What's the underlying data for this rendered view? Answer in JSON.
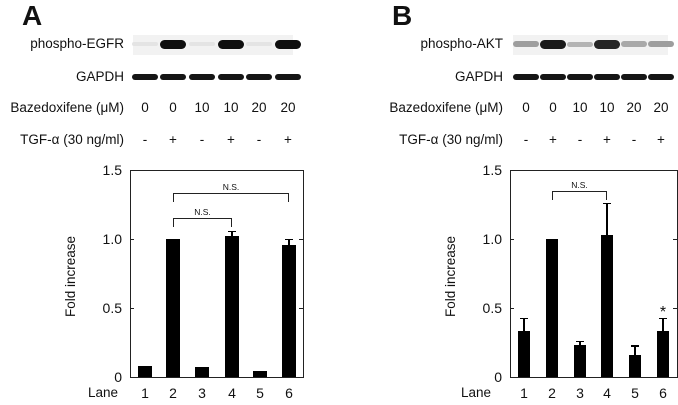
{
  "panels": [
    {
      "letter": "A",
      "blot": {
        "target_label": "phospho-EGFR",
        "loading_label": "GAPDH",
        "target_band_intensity": [
          0.03,
          1.0,
          0.03,
          1.0,
          0.03,
          1.0
        ],
        "loading_band_intensity": [
          1,
          1,
          1,
          1,
          1,
          1
        ]
      },
      "treatments": {
        "drug_label": "Bazedoxifene (μM)",
        "drug_values": [
          "0",
          "0",
          "10",
          "10",
          "20",
          "20"
        ],
        "stim_label": "TGF-α (30 ng/ml)",
        "stim_values": [
          "-",
          "+",
          "-",
          "+",
          "-",
          "+"
        ]
      }
    },
    {
      "letter": "B",
      "blot": {
        "target_label": "phospho-AKT",
        "loading_label": "GAPDH",
        "target_band_intensity": [
          0.35,
          0.95,
          0.25,
          0.9,
          0.3,
          0.35
        ],
        "loading_band_intensity": [
          1,
          1,
          1,
          1,
          1,
          1
        ]
      },
      "treatments": {
        "drug_label": "Bazedoxifene (μM)",
        "drug_values": [
          "0",
          "0",
          "10",
          "10",
          "20",
          "20"
        ],
        "stim_label": "TGF-α (30 ng/ml)",
        "stim_values": [
          "-",
          "+",
          "-",
          "+",
          "-",
          "+"
        ]
      }
    }
  ],
  "chart_data": [
    {
      "type": "bar",
      "title": "A",
      "xlabel": "Lane",
      "ylabel": "Fold increase",
      "categories": [
        "1",
        "2",
        "3",
        "4",
        "5",
        "6"
      ],
      "values": [
        0.08,
        1.0,
        0.07,
        1.02,
        0.04,
        0.96
      ],
      "error": [
        0.005,
        0.0,
        0.005,
        0.04,
        0.005,
        0.04
      ],
      "ylim": [
        0,
        1.5
      ],
      "yticks": [
        "0",
        "0.5",
        "1.0",
        "1.5"
      ],
      "grid": false,
      "annotations": [
        {
          "type": "bracket",
          "from_lane": "2",
          "to_lane": "4",
          "text": "N.S."
        },
        {
          "type": "bracket",
          "from_lane": "2",
          "to_lane": "6",
          "text": "N.S."
        }
      ]
    },
    {
      "type": "bar",
      "title": "B",
      "xlabel": "Lane",
      "ylabel": "Fold increase",
      "categories": [
        "1",
        "2",
        "3",
        "4",
        "5",
        "6"
      ],
      "values": [
        0.33,
        1.0,
        0.23,
        1.03,
        0.16,
        0.33
      ],
      "error": [
        0.1,
        0.0,
        0.03,
        0.23,
        0.07,
        0.1
      ],
      "ylim": [
        0,
        1.5
      ],
      "yticks": [
        "0",
        "0.5",
        "1.0",
        "1.5"
      ],
      "grid": false,
      "annotations": [
        {
          "type": "bracket",
          "from_lane": "2",
          "to_lane": "4",
          "text": "N.S."
        },
        {
          "type": "marker",
          "lane": "6",
          "text": "*"
        }
      ]
    }
  ]
}
